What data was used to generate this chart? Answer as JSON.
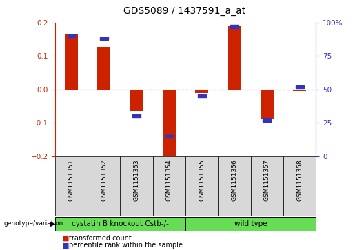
{
  "title": "GDS5089 / 1437591_a_at",
  "samples": [
    "GSM1151351",
    "GSM1151352",
    "GSM1151353",
    "GSM1151354",
    "GSM1151355",
    "GSM1151356",
    "GSM1151357",
    "GSM1151358"
  ],
  "red_values": [
    0.165,
    0.128,
    -0.065,
    -0.215,
    -0.01,
    0.19,
    -0.09,
    -0.005
  ],
  "blue_values": [
    90,
    88,
    30,
    15,
    45,
    97,
    27,
    52
  ],
  "group1_label": "cystatin B knockout Cstb-/-",
  "group2_label": "wild type",
  "group_color": "#66dd55",
  "group_row_label": "genotype/variation",
  "legend_red": "transformed count",
  "legend_blue": "percentile rank within the sample",
  "ylim_left": [
    -0.2,
    0.2
  ],
  "ylim_right": [
    0,
    100
  ],
  "yticks_left": [
    -0.2,
    -0.1,
    0.0,
    0.1,
    0.2
  ],
  "yticks_right": [
    0,
    25,
    50,
    75,
    100
  ],
  "red_color": "#cc2200",
  "blue_color": "#3333bb",
  "zero_line_color": "#cc2200",
  "bg_color": "#ffffff",
  "title_fontsize": 10,
  "tick_fontsize": 7.5,
  "sample_fontsize": 6.5,
  "legend_fontsize": 7,
  "group_fontsize": 7.5
}
